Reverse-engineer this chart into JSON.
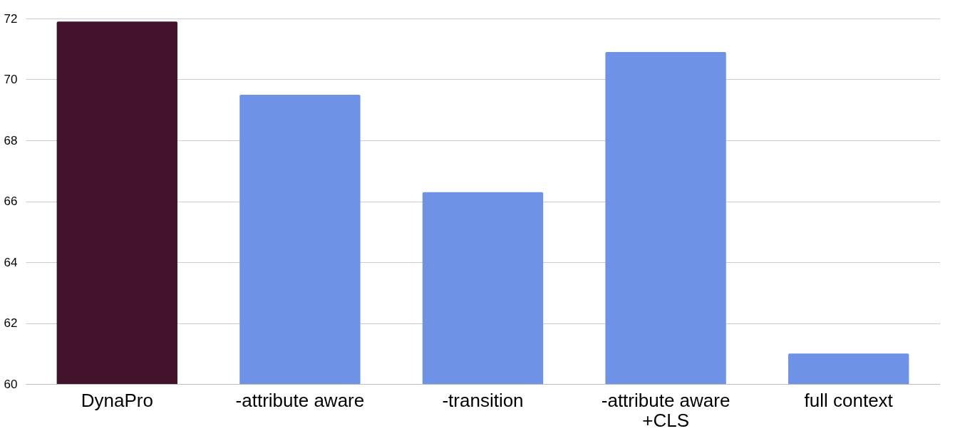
{
  "chart_data": {
    "type": "bar",
    "categories": [
      "DynaPro",
      "-attribute aware",
      "-transition",
      "-attribute aware\n+CLS",
      "full context"
    ],
    "values": [
      71.9,
      69.5,
      66.3,
      70.9,
      61.0
    ],
    "colors": [
      "#42132b",
      "#6d92e6",
      "#6d92e6",
      "#6d92e6",
      "#6d92e6"
    ],
    "ylim": [
      60,
      72
    ],
    "yticks": [
      60,
      62,
      64,
      66,
      68,
      70,
      72
    ],
    "grid": "y"
  }
}
